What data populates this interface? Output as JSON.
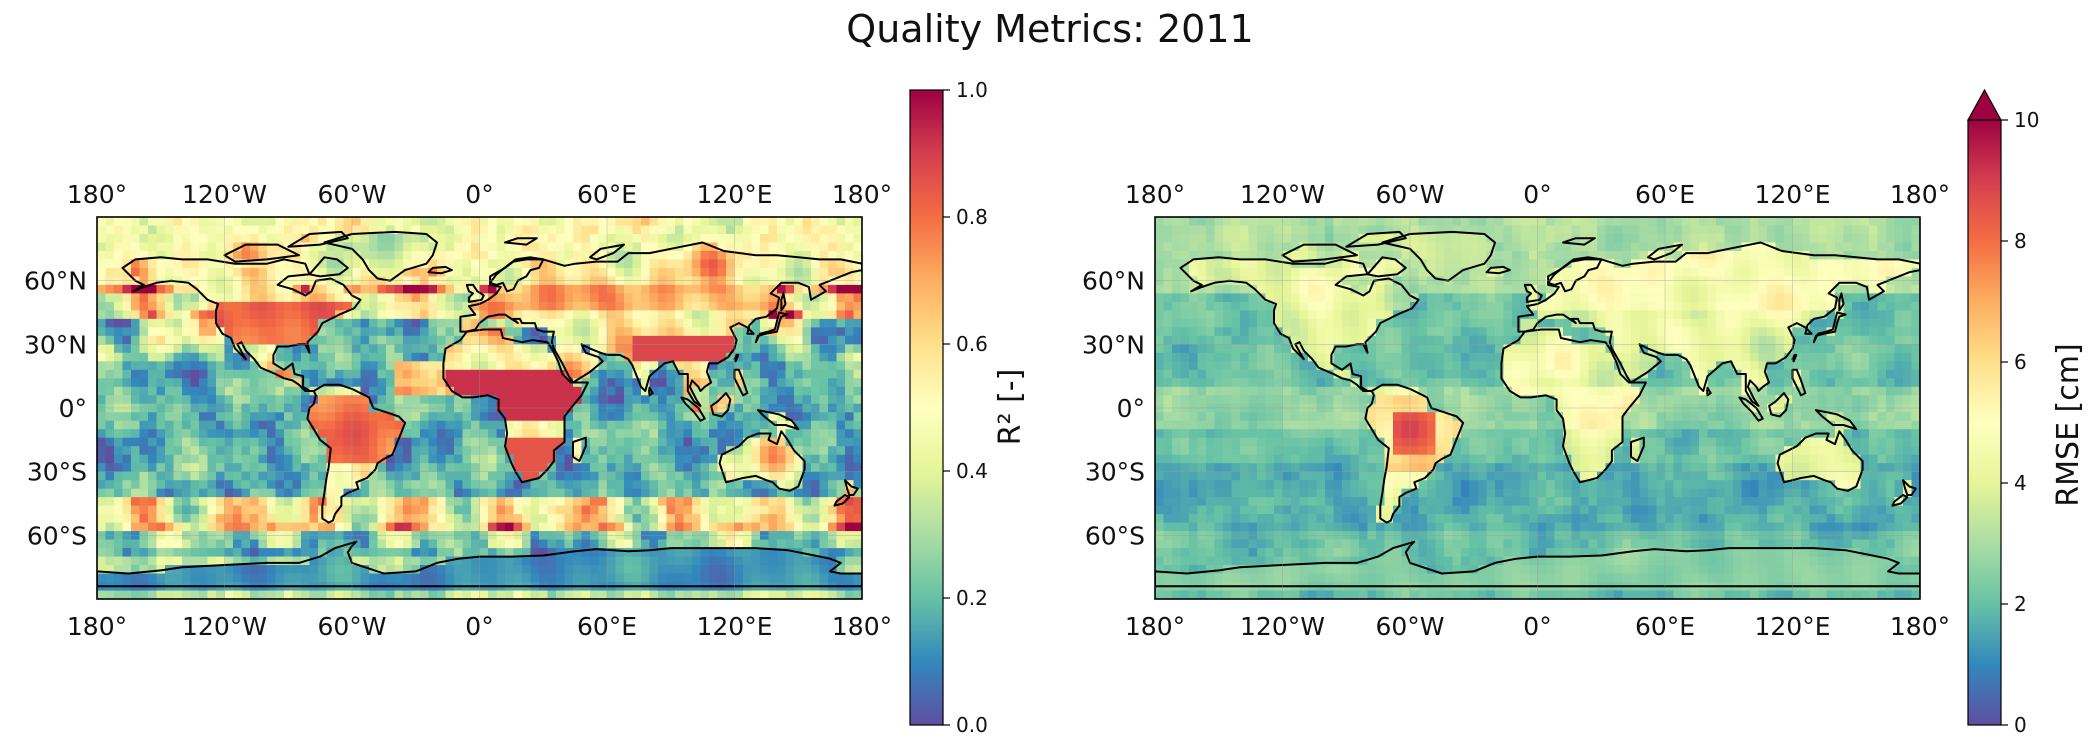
{
  "figure": {
    "title": "Quality Metrics: 2011"
  },
  "panels": [
    {
      "id": "r2",
      "colorbar": {
        "label": "R² [-]",
        "ticks": [
          "0.0",
          "0.2",
          "0.4",
          "0.6",
          "0.8",
          "1.0"
        ],
        "range": [
          0,
          1
        ],
        "extend_max": false,
        "colormap": "Spectral_r"
      },
      "lon_ticks": [
        "180°",
        "120°W",
        "60°W",
        "0°",
        "60°E",
        "120°E",
        "180°"
      ],
      "lat_ticks": [
        "60°N",
        "30°N",
        "0°",
        "30°S",
        "60°S"
      ]
    },
    {
      "id": "rmse",
      "colorbar": {
        "label": "RMSE [cm]",
        "ticks": [
          "0",
          "2",
          "4",
          "6",
          "8",
          "10"
        ],
        "range": [
          0,
          10
        ],
        "extend_max": true,
        "colormap": "Spectral_r"
      },
      "lon_ticks": [
        "180°",
        "120°W",
        "60°W",
        "0°",
        "60°E",
        "120°E",
        "180°"
      ],
      "lat_ticks": [
        "60°N",
        "30°N",
        "0°",
        "30°S",
        "60°S"
      ]
    }
  ],
  "colors": {
    "spectral_r": [
      "#5e4fa2",
      "#3288bd",
      "#66c2a5",
      "#abdda4",
      "#e6f598",
      "#ffffbf",
      "#fee08b",
      "#fdae61",
      "#f46d43",
      "#d53e4f",
      "#9e0142"
    ],
    "coastline": "#000000",
    "gridline": "#9a9a9a"
  }
}
